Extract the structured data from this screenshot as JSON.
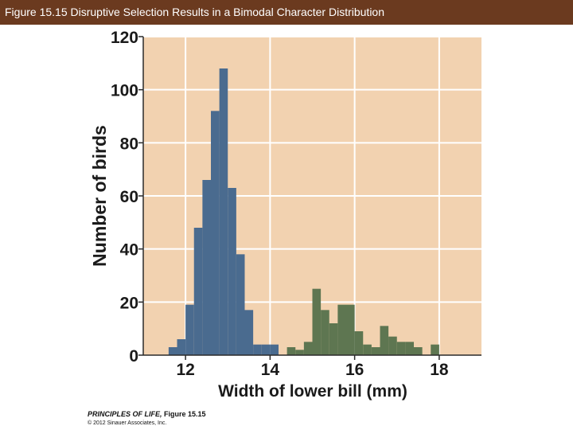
{
  "header": {
    "title": "Figure 15.15 Disruptive Selection Results in a Bimodal Character Distribution"
  },
  "credit": {
    "book": "PRINCIPLES OF LIFE,",
    "figure": "Figure 15.15",
    "copyright": "© 2012 Sinauer Associates, Inc."
  },
  "colors": {
    "title_bar": "#6b3a1f",
    "plot_background": "#f2d2b0",
    "blue_bars": "#4a6b8f",
    "green_bars": "#5e7651",
    "axis_text": "#1a1a1a"
  },
  "chart_data": {
    "type": "bar",
    "title": "",
    "xlabel": "Width of lower bill (mm)",
    "ylabel": "Number of birds",
    "xlim": [
      11.0,
      19.0
    ],
    "ylim": [
      0,
      120
    ],
    "bin_width": 0.2,
    "x_ticks": [
      12,
      14,
      16,
      18
    ],
    "y_ticks": [
      0,
      20,
      40,
      60,
      80,
      100,
      120
    ],
    "grid": true,
    "series": [
      {
        "color": "#4a6b8f",
        "x": [
          11.6,
          11.8,
          12.0,
          12.2,
          12.4,
          12.6,
          12.8,
          13.0,
          13.2,
          13.4,
          13.6,
          13.8,
          14.0
        ],
        "values": [
          3,
          6,
          19,
          48,
          66,
          92,
          108,
          63,
          38,
          17,
          4,
          4,
          4
        ]
      },
      {
        "color": "#5e7651",
        "x": [
          14.4,
          14.6,
          14.8,
          15.0,
          15.2,
          15.4,
          15.6,
          15.8,
          16.0,
          16.2,
          16.4,
          16.6,
          16.8,
          17.0,
          17.2,
          17.4,
          17.8
        ],
        "values": [
          3,
          2,
          5,
          25,
          17,
          12,
          19,
          19,
          9,
          4,
          3,
          11,
          7,
          5,
          5,
          3,
          4
        ]
      }
    ]
  }
}
